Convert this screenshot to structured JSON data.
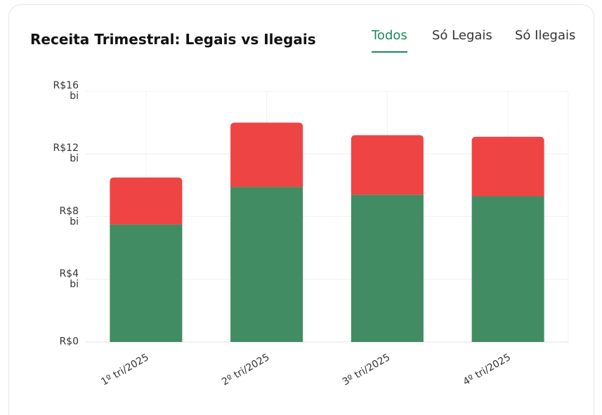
{
  "chart_data": {
    "type": "stacked-bar",
    "title": "Receita Trimestral: Legais vs Ilegais",
    "tabs": [
      "Todos",
      "Só Legais",
      "Só Ilegais"
    ],
    "active_tab": 0,
    "categories": [
      "1º tri/2025",
      "2º tri/2025",
      "3º tri/2025",
      "4º tri/2025"
    ],
    "series": [
      {
        "color": "#418c62",
        "values": [
          7.5,
          9.9,
          9.4,
          9.3
        ]
      },
      {
        "color": "#ef4444",
        "values": [
          3.0,
          4.1,
          3.8,
          3.8
        ]
      }
    ],
    "ylim": [
      0,
      16
    ],
    "yticks": [
      {
        "value": 0,
        "label": "R$0"
      },
      {
        "value": 4,
        "label": "R$4 bi"
      },
      {
        "value": 8,
        "label": "R$8 bi"
      },
      {
        "value": 12,
        "label": "R$12 bi"
      },
      {
        "value": 16,
        "label": "R$16 bi"
      }
    ],
    "grid": true
  }
}
